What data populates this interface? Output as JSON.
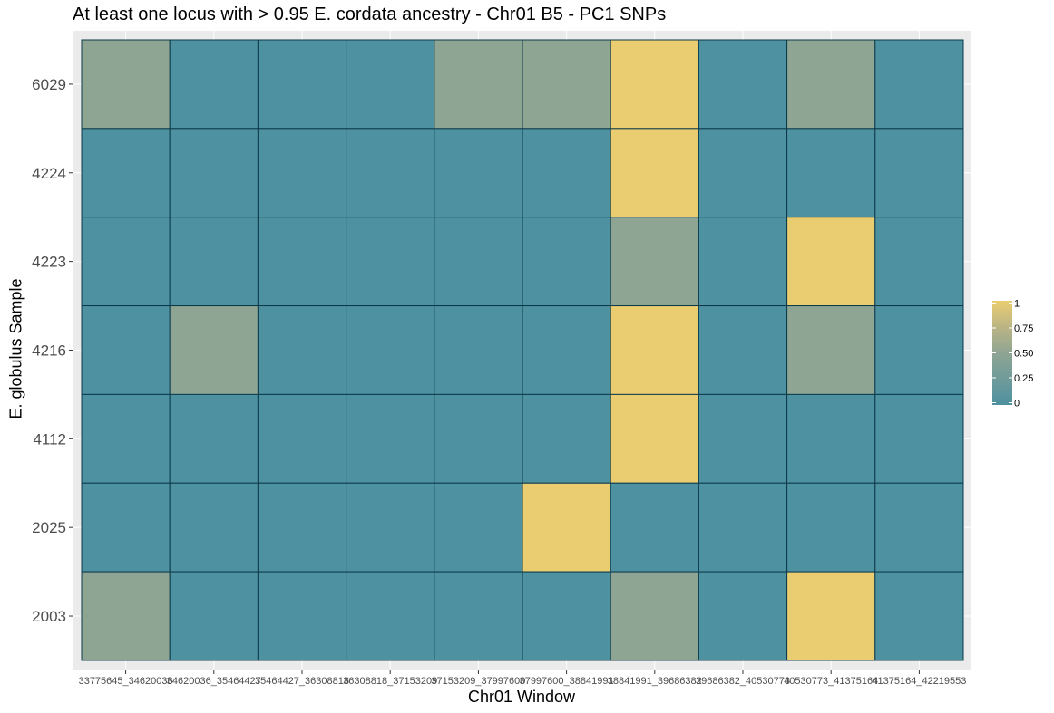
{
  "chart_data": {
    "type": "heatmap",
    "title": "At least one locus with > 0.95 E. cordata ancestry - Chr01 B5 - PC1 SNPs",
    "xlabel": "Chr01 Window",
    "ylabel": "E. globulus Sample",
    "x_categories": [
      "33775645_34620036",
      "34620036_35464427",
      "35464427_36308818",
      "36308818_37153209",
      "37153209_37997600",
      "37997600_38841991",
      "38841991_39686382",
      "39686382_40530773",
      "40530773_41375164",
      "41375164_42219553"
    ],
    "y_categories": [
      "6029",
      "4224",
      "4223",
      "4216",
      "4112",
      "2025",
      "2003"
    ],
    "values": [
      [
        0.5,
        0,
        0,
        0,
        0.5,
        0.5,
        1,
        0,
        0.5,
        0
      ],
      [
        0,
        0,
        0,
        0,
        0,
        0,
        1,
        0,
        0,
        0
      ],
      [
        0,
        0,
        0,
        0,
        0,
        0,
        0.5,
        0,
        1,
        0
      ],
      [
        0,
        0.5,
        0,
        0,
        0,
        0,
        1,
        0,
        0.5,
        0
      ],
      [
        0,
        0,
        0,
        0,
        0,
        0,
        1,
        0,
        0,
        0
      ],
      [
        0,
        0,
        0,
        0,
        0,
        1,
        0,
        0,
        0,
        0
      ],
      [
        0.5,
        0,
        0,
        0,
        0,
        0,
        0.5,
        0,
        1,
        0
      ]
    ],
    "color_scale": {
      "breaks": [
        "0",
        "0.25",
        "0.50",
        "0.75",
        "1"
      ],
      "low": "#4e91a0",
      "mid": "#8fa593",
      "high_mid": "#bbb584",
      "high": "#ebcd71"
    },
    "legend_position": "right",
    "grid": true,
    "panel_background": "#ebebeb",
    "tile_border": "#0b3a4a"
  }
}
